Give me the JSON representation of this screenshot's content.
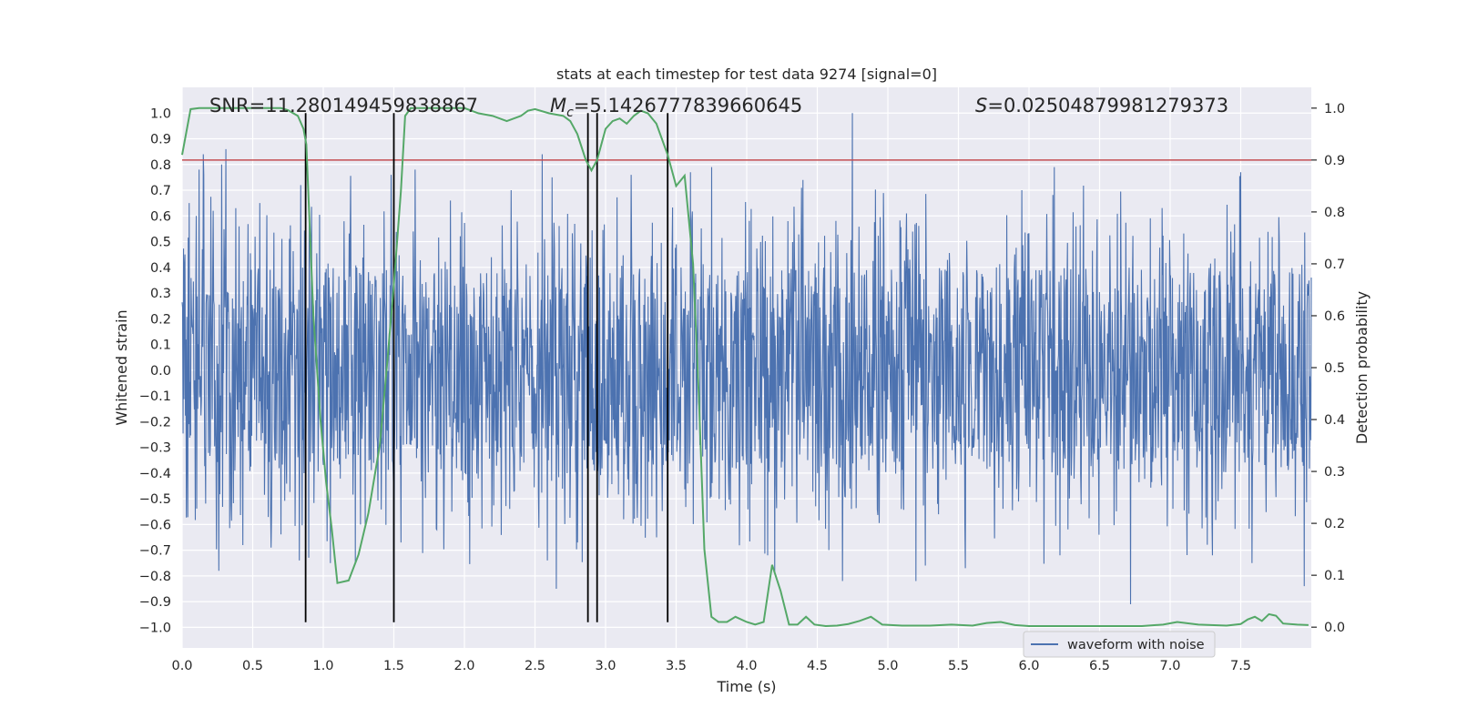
{
  "chart_data": {
    "type": "line",
    "title": "stats at each timestep for test data 9274 [signal=0]",
    "xlabel": "Time (s)",
    "ylabel_left": "Whitened strain",
    "ylabel_right": "Detection probability",
    "xlim": [
      0.0,
      8.0
    ],
    "ylim_left": [
      -1.08,
      1.1
    ],
    "ylim_right": [
      -0.04,
      1.04
    ],
    "x_ticks": [
      0.0,
      0.5,
      1.0,
      1.5,
      2.0,
      2.5,
      3.0,
      3.5,
      4.0,
      4.5,
      5.0,
      5.5,
      6.0,
      6.5,
      7.0,
      7.5
    ],
    "x_tick_labels": [
      "0.0",
      "0.5",
      "1.0",
      "1.5",
      "2.0",
      "2.5",
      "3.0",
      "3.5",
      "4.0",
      "4.5",
      "5.0",
      "5.5",
      "6.0",
      "6.5",
      "7.0",
      "7.5"
    ],
    "y_left_ticks": [
      1.0,
      0.9,
      0.8,
      0.7,
      0.6,
      0.5,
      0.4,
      0.3,
      0.2,
      0.1,
      0.0,
      -0.1,
      -0.2,
      -0.3,
      -0.4,
      -0.5,
      -0.6,
      -0.7,
      -0.8,
      -0.9,
      -1.0
    ],
    "y_left_tick_labels": [
      "1.0",
      "0.9",
      "0.8",
      "0.7",
      "0.6",
      "0.5",
      "0.4",
      "0.3",
      "0.2",
      "0.1",
      "0.0",
      "−0.1",
      "−0.2",
      "−0.3",
      "−0.4",
      "−0.5",
      "−0.6",
      "−0.7",
      "−0.8",
      "−0.9",
      "−1.0"
    ],
    "y_right_ticks": [
      1.0,
      0.9,
      0.8,
      0.7,
      0.6,
      0.5,
      0.4,
      0.3,
      0.2,
      0.1,
      0.0
    ],
    "y_right_tick_labels": [
      "1.0",
      "0.9",
      "0.8",
      "0.7",
      "0.6",
      "0.5",
      "0.4",
      "0.3",
      "0.2",
      "0.1",
      "0.0"
    ],
    "annotations": {
      "snr_label": "SNR=11.280149459838867",
      "mc_symbol": "M",
      "mc_subscript": "c",
      "mc_value": "=5.1426777839660645",
      "s_symbol": "S",
      "s_value": "=0.02504879981279373"
    },
    "legend": {
      "label": "waveform with noise",
      "placement": "lower-right"
    },
    "threshold": {
      "axis": "right",
      "value": 0.9,
      "color": "#c44e52"
    },
    "vertical_markers": [
      0.875,
      1.5,
      2.875,
      2.94,
      3.44
    ],
    "waveform": {
      "name": "waveform with noise",
      "color": "#4c72b0",
      "duration_s": 8.0,
      "core_amplitude": 0.4,
      "seed": 9274,
      "spikes": [
        {
          "t": 0.02,
          "v": 0.45
        },
        {
          "t": 0.05,
          "v": 0.65
        },
        {
          "t": 0.1,
          "v": 0.6
        },
        {
          "t": 0.12,
          "v": 0.78
        },
        {
          "t": 0.15,
          "v": 0.84
        },
        {
          "t": 0.28,
          "v": 0.8
        },
        {
          "t": 0.31,
          "v": 0.86
        },
        {
          "t": 0.22,
          "v": 0.62
        },
        {
          "t": 0.38,
          "v": 0.63
        },
        {
          "t": 0.55,
          "v": 0.65
        },
        {
          "t": 0.84,
          "v": 0.72
        },
        {
          "t": 0.9,
          "v": 0.6
        },
        {
          "t": 1.48,
          "v": 0.76
        },
        {
          "t": 1.65,
          "v": 0.78
        },
        {
          "t": 1.9,
          "v": 0.66
        },
        {
          "t": 2.33,
          "v": 0.7
        },
        {
          "t": 2.55,
          "v": 0.84
        },
        {
          "t": 2.62,
          "v": 0.75
        },
        {
          "t": 3.18,
          "v": 0.76
        },
        {
          "t": 3.6,
          "v": 0.77
        },
        {
          "t": 3.75,
          "v": 0.79
        },
        {
          "t": 4.4,
          "v": 0.74
        },
        {
          "t": 4.75,
          "v": 1.0
        },
        {
          "t": 5.2,
          "v": 0.78
        },
        {
          "t": 5.55,
          "v": 0.75
        },
        {
          "t": 5.95,
          "v": 0.7
        },
        {
          "t": 6.18,
          "v": 0.79
        },
        {
          "t": 6.72,
          "v": 0.82
        },
        {
          "t": 7.5,
          "v": 0.77
        },
        {
          "t": 7.95,
          "v": 0.52
        },
        {
          "t": 0.26,
          "v": -0.78
        },
        {
          "t": 0.43,
          "v": -0.68
        },
        {
          "t": 0.63,
          "v": -0.69
        },
        {
          "t": 0.83,
          "v": -0.74
        },
        {
          "t": 1.05,
          "v": -0.75
        },
        {
          "t": 1.5,
          "v": -0.98
        },
        {
          "t": 1.55,
          "v": -0.67
        },
        {
          "t": 2.65,
          "v": -0.85
        },
        {
          "t": 2.8,
          "v": -0.67
        },
        {
          "t": 3.36,
          "v": -0.65
        },
        {
          "t": 4.15,
          "v": -0.72
        },
        {
          "t": 4.2,
          "v": -0.79
        },
        {
          "t": 4.68,
          "v": -0.82
        },
        {
          "t": 5.2,
          "v": -0.82
        },
        {
          "t": 5.55,
          "v": -0.77
        },
        {
          "t": 6.22,
          "v": -0.72
        },
        {
          "t": 6.72,
          "v": -0.91
        },
        {
          "t": 7.3,
          "v": -0.72
        },
        {
          "t": 7.58,
          "v": -0.75
        },
        {
          "t": 7.95,
          "v": -0.84
        }
      ]
    },
    "detection_probability": {
      "name": "detection probability",
      "color": "#55a868",
      "x": [
        0.0,
        0.06,
        0.12,
        0.2,
        0.3,
        0.4,
        0.5,
        0.6,
        0.7,
        0.75,
        0.82,
        0.86,
        0.88,
        0.93,
        0.98,
        1.02,
        1.06,
        1.1,
        1.18,
        1.25,
        1.32,
        1.4,
        1.45,
        1.5,
        1.55,
        1.58,
        1.62,
        1.7,
        1.8,
        1.9,
        2.0,
        2.1,
        2.2,
        2.3,
        2.4,
        2.45,
        2.5,
        2.6,
        2.7,
        2.75,
        2.8,
        2.86,
        2.9,
        2.94,
        3.0,
        3.05,
        3.1,
        3.15,
        3.2,
        3.25,
        3.3,
        3.36,
        3.44,
        3.5,
        3.56,
        3.62,
        3.66,
        3.7,
        3.75,
        3.8,
        3.86,
        3.92,
        4.0,
        4.06,
        4.12,
        4.18,
        4.24,
        4.3,
        4.36,
        4.42,
        4.48,
        4.56,
        4.64,
        4.72,
        4.8,
        4.88,
        4.96,
        5.1,
        5.3,
        5.45,
        5.6,
        5.7,
        5.8,
        5.9,
        6.0,
        6.2,
        6.5,
        6.8,
        6.95,
        7.05,
        7.2,
        7.4,
        7.5,
        7.55,
        7.6,
        7.65,
        7.7,
        7.75,
        7.8,
        7.9,
        7.98
      ],
      "values": [
        0.91,
        0.998,
        1.0,
        1.0,
        1.0,
        1.0,
        1.0,
        1.0,
        1.0,
        0.996,
        0.985,
        0.96,
        0.93,
        0.6,
        0.4,
        0.28,
        0.19,
        0.085,
        0.09,
        0.14,
        0.22,
        0.35,
        0.5,
        0.66,
        0.84,
        0.985,
        1.0,
        1.0,
        1.0,
        1.0,
        1.0,
        0.99,
        0.985,
        0.975,
        0.985,
        0.995,
        0.998,
        0.99,
        0.985,
        0.975,
        0.95,
        0.9,
        0.88,
        0.9,
        0.96,
        0.975,
        0.98,
        0.97,
        0.985,
        0.995,
        0.99,
        0.97,
        0.91,
        0.85,
        0.87,
        0.7,
        0.45,
        0.15,
        0.02,
        0.01,
        0.01,
        0.02,
        0.01,
        0.005,
        0.01,
        0.12,
        0.07,
        0.005,
        0.005,
        0.02,
        0.005,
        0.002,
        0.003,
        0.006,
        0.012,
        0.02,
        0.005,
        0.003,
        0.003,
        0.005,
        0.003,
        0.008,
        0.01,
        0.004,
        0.002,
        0.002,
        0.002,
        0.002,
        0.005,
        0.01,
        0.005,
        0.003,
        0.006,
        0.015,
        0.02,
        0.012,
        0.025,
        0.022,
        0.007,
        0.005,
        0.004
      ]
    }
  }
}
